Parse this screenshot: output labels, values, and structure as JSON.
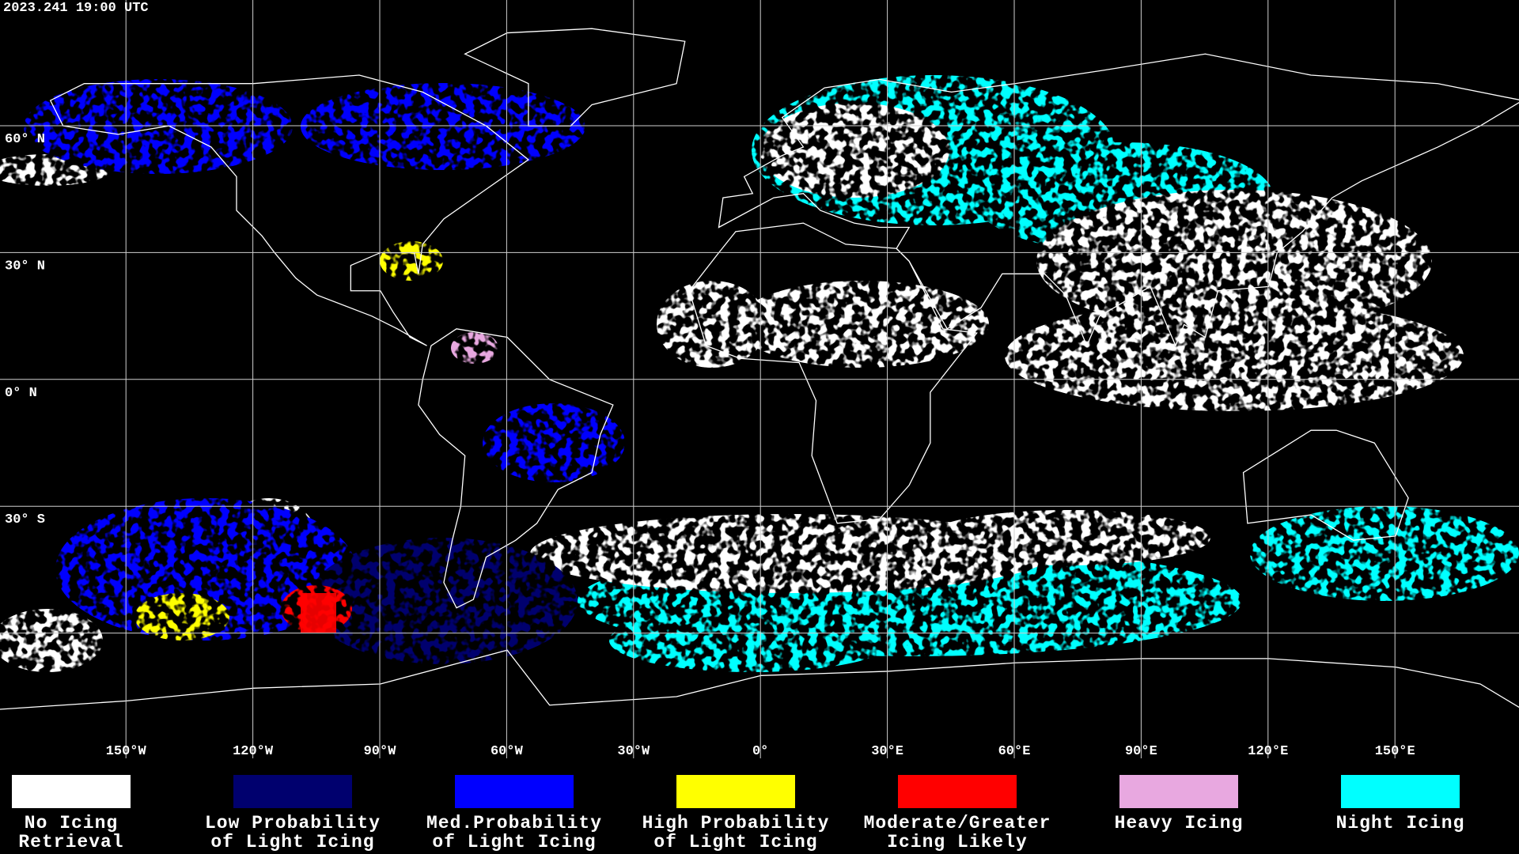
{
  "header": {
    "timestamp": "2023.241 19:00 UTC"
  },
  "map": {
    "latitude_labels": [
      "60° N",
      "30° N",
      "0° N",
      "30° S"
    ],
    "longitude_labels": [
      "150°W",
      "120°W",
      "90°W",
      "60°W",
      "30°W",
      "0°",
      "30°E",
      "60°E",
      "90°E",
      "120°E",
      "150°E"
    ]
  },
  "legend": [
    {
      "label_lines": [
        "No Icing",
        "Retrieval"
      ],
      "color": "#ffffff"
    },
    {
      "label_lines": [
        "Low Probability",
        "of Light Icing"
      ],
      "color": "#00006e"
    },
    {
      "label_lines": [
        "Med.Probability",
        "of Light Icing"
      ],
      "color": "#0000ff"
    },
    {
      "label_lines": [
        "High Probability",
        "of Light Icing"
      ],
      "color": "#ffff00"
    },
    {
      "label_lines": [
        "Moderate/Greater",
        "Icing Likely"
      ],
      "color": "#ff0000"
    },
    {
      "label_lines": [
        "Heavy Icing"
      ],
      "color": "#e8a8e0"
    },
    {
      "label_lines": [
        "Night Icing"
      ],
      "color": "#00ffff"
    }
  ]
}
